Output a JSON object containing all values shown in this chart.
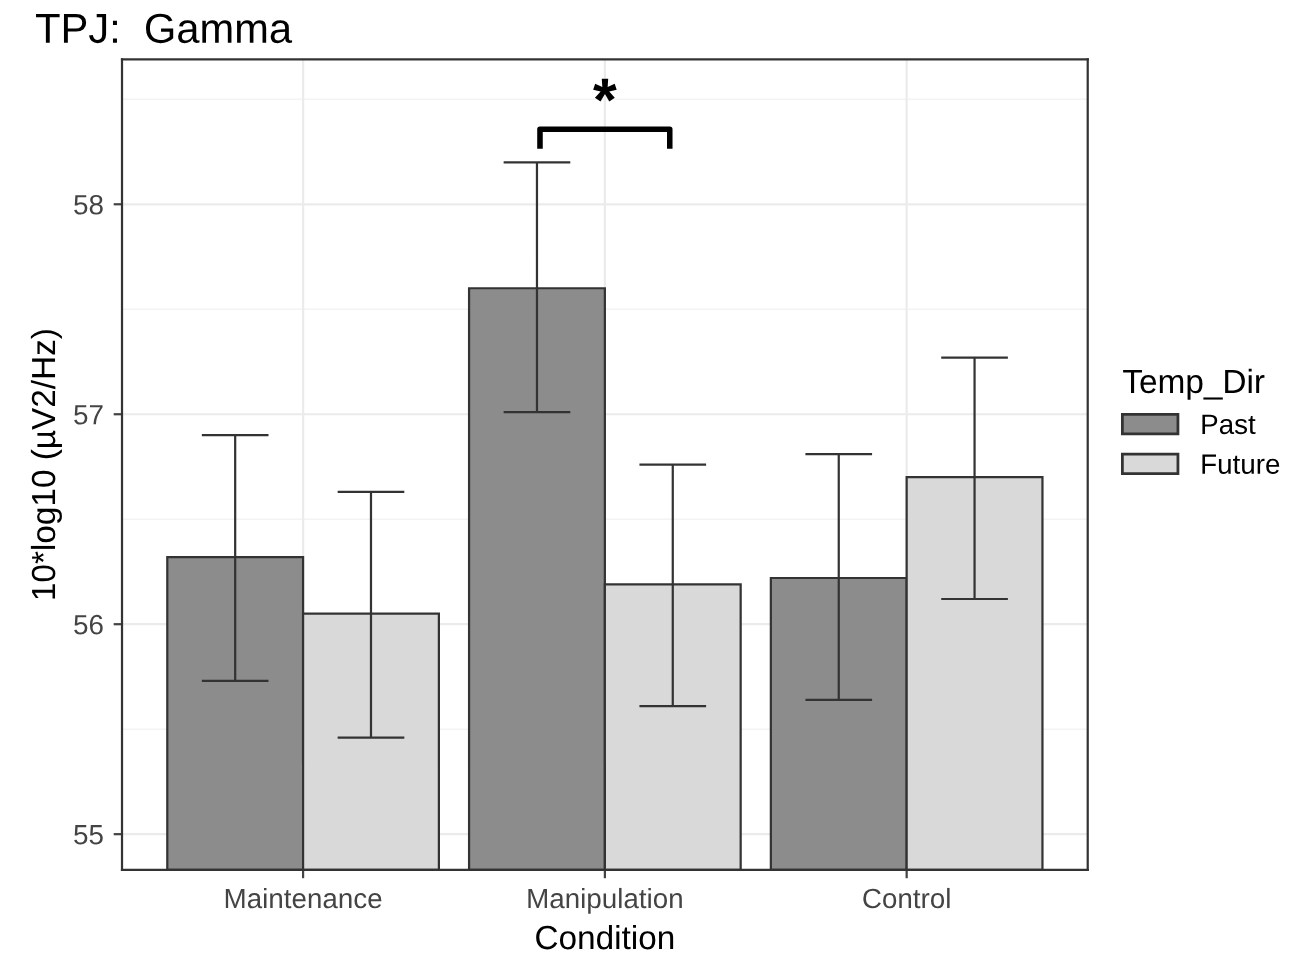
{
  "chart_data": {
    "type": "bar",
    "title": "TPJ:  Gamma",
    "xlabel": "Condition",
    "ylabel": "10*log10 (µV2/Hz)",
    "legend_title": "Temp_Dir",
    "categories": [
      "Maintenance",
      "Manipulation",
      "Control"
    ],
    "series": [
      {
        "name": "Past",
        "color": "#8c8c8c",
        "values": [
          56.32,
          57.6,
          56.22
        ],
        "errors": [
          [
            55.73,
            56.9
          ],
          [
            57.01,
            58.2
          ],
          [
            55.64,
            56.81
          ]
        ]
      },
      {
        "name": "Future",
        "color": "#d9d9d9",
        "values": [
          56.05,
          56.19,
          56.7
        ],
        "errors": [
          [
            55.46,
            56.63
          ],
          [
            55.61,
            56.76
          ],
          [
            56.12,
            57.27
          ]
        ]
      }
    ],
    "ylim": [
      54.83,
      58.69
    ],
    "yticks": [
      55,
      56,
      57,
      58
    ],
    "grid": true,
    "legend": "right",
    "annotations": [
      "*"
    ]
  }
}
